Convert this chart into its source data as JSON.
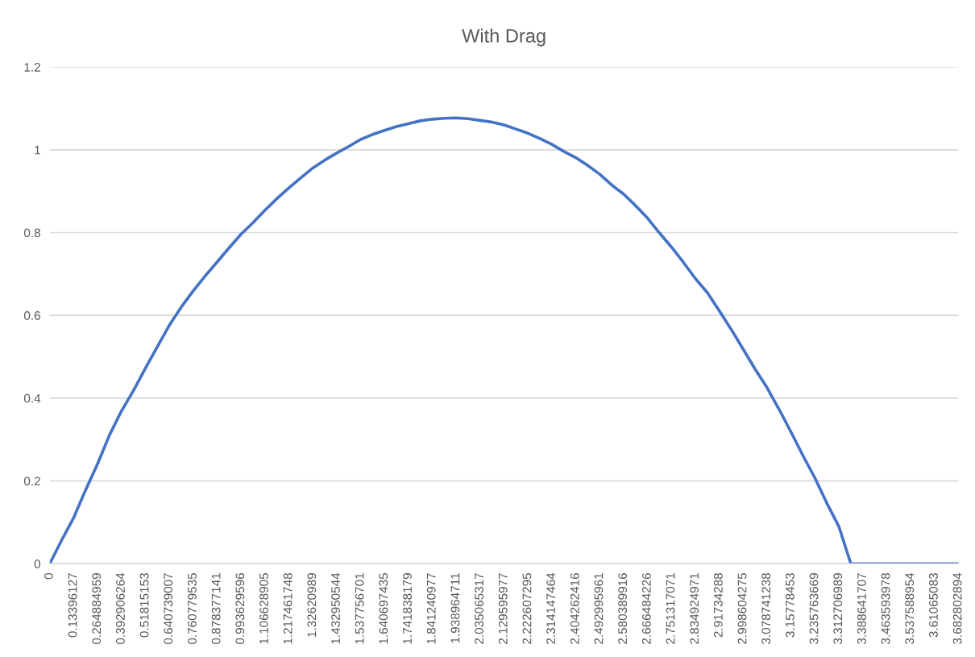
{
  "chart_data": {
    "type": "line",
    "title": "With Drag",
    "categories": [
      "0",
      null,
      "0.13396127",
      null,
      "0.264884959",
      null,
      "0.392906264",
      null,
      "0.51815153",
      null,
      "0.640739007",
      null,
      "0.760779535",
      null,
      "0.878377141",
      null,
      "0.993629596",
      null,
      "1.106628905",
      null,
      "1.217461748",
      null,
      "1.32620989",
      null,
      "1.432950544",
      null,
      "1.537756701",
      null,
      "1.640697435",
      null,
      "1.741838179",
      null,
      "1.841240977",
      null,
      "1.938964711",
      null,
      "2.035065317",
      null,
      "2.129595977",
      null,
      "2.222607295",
      null,
      "2.314147464",
      null,
      "2.404262416",
      null,
      "2.492995961",
      null,
      "2.580389916",
      null,
      "2.666484226",
      null,
      "2.751317071",
      null,
      "2.834924971",
      null,
      "2.91734288",
      null,
      "2.998604275",
      null,
      "3.078741238",
      null,
      "3.15778453",
      null,
      "3.235763669",
      null,
      "3.312706989",
      null,
      "3.388641707",
      null,
      "3.463593978",
      null,
      "3.537588954",
      null,
      "3.61065083",
      null,
      "3.682802894"
    ],
    "series": [
      {
        "color": "#4472c4",
        "values": [
          0,
          0.057,
          0.111,
          0.178,
          0.241,
          0.311,
          0.369,
          0.418,
          0.472,
          0.524,
          0.576,
          0.62,
          0.659,
          0.695,
          0.729,
          0.763,
          0.796,
          0.824,
          0.854,
          0.882,
          0.908,
          0.932,
          0.956,
          0.975,
          0.992,
          1.008,
          1.025,
          1.037,
          1.047,
          1.056,
          1.063,
          1.07,
          1.074,
          1.076,
          1.077,
          1.075,
          1.071,
          1.067,
          1.06,
          1.05,
          1.04,
          1.027,
          1.013,
          0.996,
          0.981,
          0.962,
          0.941,
          0.915,
          0.893,
          0.865,
          0.835,
          0.799,
          0.765,
          0.728,
          0.689,
          0.655,
          0.611,
          0.566,
          0.518,
          0.47,
          0.425,
          0.373,
          0.318,
          0.261,
          0.207,
          0.146,
          0.09,
          0,
          0,
          0,
          0,
          0,
          0,
          0,
          0,
          0,
          0
        ]
      }
    ],
    "ylim": [
      0,
      1.2
    ],
    "yticks": [
      0,
      0.2,
      0.4,
      0.6,
      0.8,
      1,
      1.2
    ],
    "grid": "y",
    "marker": "none",
    "line_style": "solid"
  }
}
